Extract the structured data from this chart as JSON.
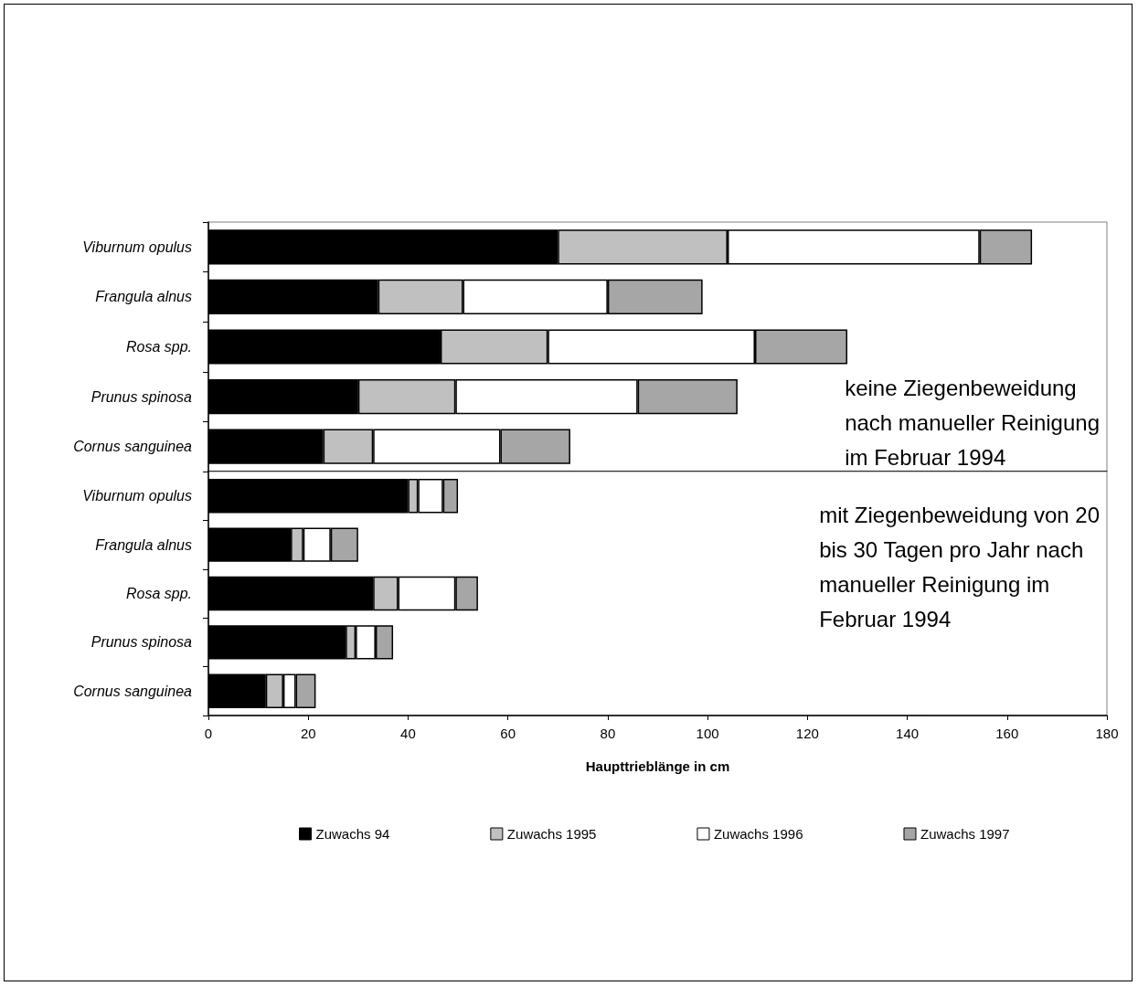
{
  "chart_data": [
    {
      "type": "bar",
      "orientation": "horizontal",
      "stacked": true,
      "tick_labels": "y",
      "categories": [
        "Viburnum opulus",
        "Frangula alnus",
        "Rosa spp.",
        "Prunus spinosa",
        "Cornus sanguinea"
      ],
      "series": [
        {
          "color": "#000000",
          "values": [
            70,
            34,
            46.5,
            30,
            23
          ]
        },
        {
          "color": "#c0c0c0",
          "values": [
            34,
            17,
            21.5,
            19.5,
            10
          ]
        },
        {
          "color": "#ffffff",
          "values": [
            50.5,
            29,
            41.5,
            36.5,
            25.5
          ]
        },
        {
          "color": "#a6a6a6",
          "values": [
            10.5,
            19,
            18.5,
            20,
            14
          ]
        }
      ],
      "xlim": [
        0,
        180
      ],
      "xticks": [
        0,
        20,
        40,
        60,
        80,
        100,
        120,
        140,
        160,
        180
      ],
      "grid": false,
      "legend": false,
      "annotations": [
        "keine Ziegenbeweidung\nnach manueller Reinigung\nim Februar 1994"
      ]
    },
    {
      "type": "bar",
      "orientation": "horizontal",
      "stacked": true,
      "categories": [
        "Viburnum opulus",
        "Frangula alnus",
        "Rosa spp.",
        "Prunus spinosa",
        "Cornus sanguinea"
      ],
      "series": [
        {
          "name": "Zuwachs 94",
          "color": "#000000",
          "values": [
            40,
            16.5,
            33,
            27.5,
            11.5
          ]
        },
        {
          "name": "Zuwachs 1995",
          "color": "#c0c0c0",
          "values": [
            2,
            2.5,
            5,
            2,
            3.5
          ]
        },
        {
          "name": "Zuwachs 1996",
          "color": "#ffffff",
          "values": [
            5,
            5.5,
            11.5,
            4,
            2.5
          ]
        },
        {
          "name": "Zuwachs 1997",
          "color": "#a6a6a6",
          "values": [
            3,
            5.5,
            4.5,
            3.5,
            4
          ]
        }
      ],
      "xlim": [
        0,
        180
      ],
      "xticks": [
        0,
        20,
        40,
        60,
        80,
        100,
        120,
        140,
        160,
        180
      ],
      "grid": false,
      "legend": "bottom",
      "xlabel": "Haupttrieblänge in cm",
      "annotations": [
        "mit Ziegenbeweidung von 20\nbis 30 Tagen pro Jahr nach\nmanueller Reinigung im\nFebruar 1994"
      ]
    }
  ]
}
